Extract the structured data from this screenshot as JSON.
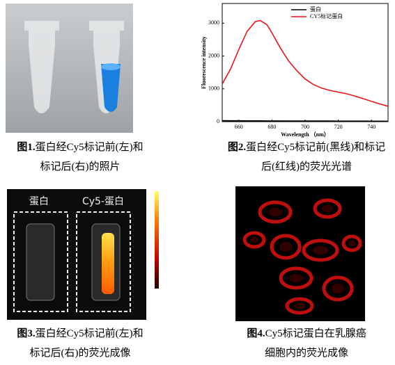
{
  "chart_data": {
    "type": "line",
    "xlabel": "Wavelength （nm）",
    "ylabel": "Fluorescence intensity",
    "x": [
      650,
      655,
      660,
      665,
      670,
      673,
      677,
      680,
      685,
      690,
      695,
      700,
      705,
      710,
      715,
      720,
      725,
      730,
      735,
      740,
      745,
      750
    ],
    "series": [
      {
        "name": "蛋白",
        "color": "#000000",
        "values": [
          30,
          28,
          27,
          26,
          25,
          25,
          24,
          24,
          23,
          22,
          22,
          21,
          20,
          20,
          19,
          18,
          18,
          17,
          16,
          15,
          14,
          13
        ]
      },
      {
        "name": "CY5标记蛋白",
        "color": "#e8141a",
        "values": [
          1150,
          1600,
          2200,
          2750,
          3050,
          3080,
          2950,
          2700,
          2250,
          1850,
          1550,
          1300,
          1130,
          1020,
          950,
          900,
          850,
          780,
          700,
          620,
          540,
          470
        ]
      }
    ],
    "xlim": [
      650,
      750
    ],
    "xticks": [
      660,
      680,
      700,
      720,
      740
    ],
    "ylim": [
      0,
      3600
    ],
    "yticks": [
      0,
      1000,
      2000,
      3000
    ],
    "legend": "upper-right"
  },
  "photo3": {
    "left_label": "蛋白",
    "right_label": "Cy5-蛋白"
  },
  "captions": [
    {
      "label": "图1.",
      "lines": [
        "蛋白经Cy5标记前(左)和",
        "标记后(右)的照片"
      ]
    },
    {
      "label": "图2.",
      "lines": [
        "蛋白经Cy5标记前(黑线)和标记",
        "后(红线)的荧光光谱"
      ]
    },
    {
      "label": "图3.",
      "lines": [
        "蛋白经Cy5标记前(左)和",
        "标记后(右)的荧光成像"
      ]
    },
    {
      "label": "图4.",
      "lines": [
        "Cy5标记蛋白在乳腺癌",
        "细胞内的荧光成像"
      ]
    }
  ]
}
